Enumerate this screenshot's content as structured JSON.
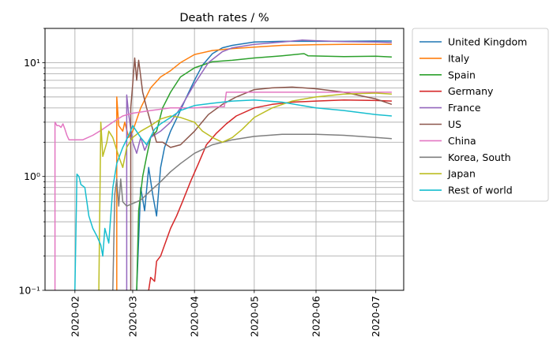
{
  "chart_data": {
    "type": "line",
    "title": "Death rates / %",
    "xlabel": "",
    "ylabel": "",
    "yscale": "log",
    "ylim": [
      0.1,
      20
    ],
    "xlim": [
      "2020-01-17",
      "2020-07-15"
    ],
    "grid": true,
    "legend_position": "outside-right",
    "x_ticks": [
      "2020-02",
      "2020-03",
      "2020-04",
      "2020-05",
      "2020-06",
      "2020-07"
    ],
    "x_tick_dates": [
      "2020-02-01",
      "2020-03-01",
      "2020-04-01",
      "2020-05-01",
      "2020-06-01",
      "2020-07-01"
    ],
    "y_ticks": [
      {
        "value": 0.1,
        "label": "10⁻¹"
      },
      {
        "value": 1,
        "label": "10⁰"
      },
      {
        "value": 10,
        "label": "10¹"
      }
    ],
    "series": [
      {
        "name": "United Kingdom",
        "color": "#1f77b4",
        "points": [
          [
            "2020-03-03",
            0.1
          ],
          [
            "2020-03-05",
            0.8
          ],
          [
            "2020-03-07",
            0.5
          ],
          [
            "2020-03-09",
            1.2
          ],
          [
            "2020-03-11",
            0.7
          ],
          [
            "2020-03-13",
            0.45
          ],
          [
            "2020-03-15",
            1.2
          ],
          [
            "2020-03-17",
            1.8
          ],
          [
            "2020-03-20",
            2.5
          ],
          [
            "2020-03-24",
            3.5
          ],
          [
            "2020-03-28",
            5.0
          ],
          [
            "2020-04-01",
            7.0
          ],
          [
            "2020-04-05",
            9.5
          ],
          [
            "2020-04-10",
            12.0
          ],
          [
            "2020-04-15",
            13.5
          ],
          [
            "2020-04-20",
            14.2
          ],
          [
            "2020-05-01",
            15.2
          ],
          [
            "2020-05-15",
            15.4
          ],
          [
            "2020-06-01",
            15.4
          ],
          [
            "2020-06-15",
            15.4
          ],
          [
            "2020-07-01",
            15.5
          ],
          [
            "2020-07-09",
            15.5
          ]
        ]
      },
      {
        "name": "Italy",
        "color": "#ff7f0e",
        "points": [
          [
            "2020-02-22",
            5.0
          ],
          [
            "2020-02-23",
            2.8
          ],
          [
            "2020-02-25",
            2.5
          ],
          [
            "2020-02-26",
            3.0
          ],
          [
            "2020-02-28",
            2.2
          ],
          [
            "2020-03-01",
            2.5
          ],
          [
            "2020-03-05",
            4.0
          ],
          [
            "2020-03-10",
            6.0
          ],
          [
            "2020-03-15",
            7.5
          ],
          [
            "2020-03-20",
            8.5
          ],
          [
            "2020-03-25",
            10.0
          ],
          [
            "2020-04-01",
            11.8
          ],
          [
            "2020-04-10",
            12.8
          ],
          [
            "2020-04-20",
            13.3
          ],
          [
            "2020-05-01",
            13.7
          ],
          [
            "2020-05-15",
            14.2
          ],
          [
            "2020-06-01",
            14.4
          ],
          [
            "2020-06-15",
            14.5
          ],
          [
            "2020-07-01",
            14.5
          ],
          [
            "2020-07-09",
            14.5
          ]
        ]
      },
      {
        "name": "Spain",
        "color": "#2ca02c",
        "points": [
          [
            "2020-03-03",
            0.1
          ],
          [
            "2020-03-04",
            0.5
          ],
          [
            "2020-03-06",
            1.0
          ],
          [
            "2020-03-08",
            1.5
          ],
          [
            "2020-03-10",
            2.2
          ],
          [
            "2020-03-13",
            2.5
          ],
          [
            "2020-03-16",
            4.0
          ],
          [
            "2020-03-20",
            5.5
          ],
          [
            "2020-03-25",
            7.5
          ],
          [
            "2020-04-01",
            9.0
          ],
          [
            "2020-04-10",
            10.2
          ],
          [
            "2020-04-20",
            10.5
          ],
          [
            "2020-05-01",
            11.0
          ],
          [
            "2020-05-15",
            11.5
          ],
          [
            "2020-05-26",
            12.0
          ],
          [
            "2020-05-28",
            11.5
          ],
          [
            "2020-06-15",
            11.3
          ],
          [
            "2020-07-01",
            11.4
          ],
          [
            "2020-07-09",
            11.2
          ]
        ]
      },
      {
        "name": "Germany",
        "color": "#d62728",
        "points": [
          [
            "2020-03-09",
            0.1
          ],
          [
            "2020-03-10",
            0.13
          ],
          [
            "2020-03-12",
            0.12
          ],
          [
            "2020-03-13",
            0.18
          ],
          [
            "2020-03-15",
            0.2
          ],
          [
            "2020-03-17",
            0.25
          ],
          [
            "2020-03-20",
            0.35
          ],
          [
            "2020-03-23",
            0.45
          ],
          [
            "2020-03-26",
            0.6
          ],
          [
            "2020-03-30",
            0.9
          ],
          [
            "2020-04-03",
            1.3
          ],
          [
            "2020-04-07",
            1.9
          ],
          [
            "2020-04-12",
            2.4
          ],
          [
            "2020-04-17",
            2.9
          ],
          [
            "2020-04-22",
            3.4
          ],
          [
            "2020-05-01",
            4.0
          ],
          [
            "2020-05-10",
            4.3
          ],
          [
            "2020-05-20",
            4.5
          ],
          [
            "2020-06-01",
            4.6
          ],
          [
            "2020-06-15",
            4.7
          ],
          [
            "2020-07-01",
            4.65
          ],
          [
            "2020-07-09",
            4.6
          ]
        ]
      },
      {
        "name": "France",
        "color": "#9467bd",
        "points": [
          [
            "2020-02-27",
            5.2
          ],
          [
            "2020-02-28",
            3.5
          ],
          [
            "2020-03-01",
            2.0
          ],
          [
            "2020-03-03",
            1.6
          ],
          [
            "2020-03-05",
            2.2
          ],
          [
            "2020-03-07",
            1.7
          ],
          [
            "2020-03-10",
            2.2
          ],
          [
            "2020-03-15",
            2.5
          ],
          [
            "2020-03-20",
            3.0
          ],
          [
            "2020-03-25",
            4.0
          ],
          [
            "2020-04-01",
            6.5
          ],
          [
            "2020-04-08",
            10.0
          ],
          [
            "2020-04-15",
            12.5
          ],
          [
            "2020-04-20",
            13.5
          ],
          [
            "2020-05-01",
            14.5
          ],
          [
            "2020-05-15",
            15.2
          ],
          [
            "2020-05-25",
            15.8
          ],
          [
            "2020-06-01",
            15.6
          ],
          [
            "2020-06-15",
            15.3
          ],
          [
            "2020-07-01",
            15.2
          ],
          [
            "2020-07-09",
            15.0
          ]
        ]
      },
      {
        "name": "US",
        "color": "#8c564b",
        "points": [
          [
            "2020-02-29",
            4.0
          ],
          [
            "2020-03-01",
            6.5
          ],
          [
            "2020-03-02",
            11.0
          ],
          [
            "2020-03-03",
            7.0
          ],
          [
            "2020-03-04",
            10.5
          ],
          [
            "2020-03-06",
            5.5
          ],
          [
            "2020-03-08",
            4.0
          ],
          [
            "2020-03-10",
            3.0
          ],
          [
            "2020-03-13",
            2.0
          ],
          [
            "2020-03-16",
            2.0
          ],
          [
            "2020-03-20",
            1.8
          ],
          [
            "2020-03-25",
            1.9
          ],
          [
            "2020-04-01",
            2.5
          ],
          [
            "2020-04-08",
            3.5
          ],
          [
            "2020-04-15",
            4.3
          ],
          [
            "2020-04-22",
            5.0
          ],
          [
            "2020-05-01",
            5.8
          ],
          [
            "2020-05-10",
            6.0
          ],
          [
            "2020-05-20",
            6.1
          ],
          [
            "2020-06-01",
            5.9
          ],
          [
            "2020-06-15",
            5.5
          ],
          [
            "2020-07-01",
            4.8
          ],
          [
            "2020-07-09",
            4.3
          ]
        ]
      },
      {
        "name": "China",
        "color": "#e377c2",
        "points": [
          [
            "2020-01-22",
            3.0
          ],
          [
            "2020-01-23",
            2.8
          ],
          [
            "2020-01-24",
            2.8
          ],
          [
            "2020-01-25",
            2.7
          ],
          [
            "2020-01-26",
            2.9
          ],
          [
            "2020-01-27",
            2.6
          ],
          [
            "2020-01-28",
            2.3
          ],
          [
            "2020-01-29",
            2.1
          ],
          [
            "2020-02-01",
            2.1
          ],
          [
            "2020-02-05",
            2.1
          ],
          [
            "2020-02-10",
            2.3
          ],
          [
            "2020-02-15",
            2.6
          ],
          [
            "2020-02-20",
            3.0
          ],
          [
            "2020-02-25",
            3.4
          ],
          [
            "2020-03-01",
            3.6
          ],
          [
            "2020-03-10",
            3.8
          ],
          [
            "2020-03-20",
            4.0
          ],
          [
            "2020-04-01",
            4.0
          ],
          [
            "2020-04-10",
            4.1
          ],
          [
            "2020-04-16",
            4.1
          ],
          [
            "2020-04-17",
            5.5
          ],
          [
            "2020-05-01",
            5.5
          ],
          [
            "2020-06-01",
            5.5
          ],
          [
            "2020-07-01",
            5.5
          ],
          [
            "2020-07-09",
            5.5
          ]
        ]
      },
      {
        "name": "Korea, South",
        "color": "#7f7f7f",
        "points": [
          [
            "2020-02-20",
            0.1
          ],
          [
            "2020-02-21",
            0.7
          ],
          [
            "2020-02-22",
            0.95
          ],
          [
            "2020-02-23",
            0.55
          ],
          [
            "2020-02-24",
            0.95
          ],
          [
            "2020-02-25",
            0.6
          ],
          [
            "2020-02-27",
            0.55
          ],
          [
            "2020-03-01",
            0.58
          ],
          [
            "2020-03-05",
            0.62
          ],
          [
            "2020-03-10",
            0.75
          ],
          [
            "2020-03-15",
            0.9
          ],
          [
            "2020-03-20",
            1.1
          ],
          [
            "2020-03-25",
            1.3
          ],
          [
            "2020-04-01",
            1.6
          ],
          [
            "2020-04-10",
            1.9
          ],
          [
            "2020-04-20",
            2.1
          ],
          [
            "2020-05-01",
            2.25
          ],
          [
            "2020-05-15",
            2.35
          ],
          [
            "2020-06-01",
            2.35
          ],
          [
            "2020-06-15",
            2.3
          ],
          [
            "2020-07-01",
            2.2
          ],
          [
            "2020-07-09",
            2.15
          ]
        ]
      },
      {
        "name": "Japan",
        "color": "#bcbd22",
        "points": [
          [
            "2020-02-13",
            0.1
          ],
          [
            "2020-02-14",
            3.0
          ],
          [
            "2020-02-15",
            1.5
          ],
          [
            "2020-02-17",
            2.0
          ],
          [
            "2020-02-18",
            2.5
          ],
          [
            "2020-02-20",
            2.2
          ],
          [
            "2020-02-23",
            1.5
          ],
          [
            "2020-02-25",
            1.2
          ],
          [
            "2020-02-27",
            1.8
          ],
          [
            "2020-03-01",
            2.2
          ],
          [
            "2020-03-05",
            2.5
          ],
          [
            "2020-03-10",
            2.8
          ],
          [
            "2020-03-15",
            3.2
          ],
          [
            "2020-03-20",
            3.4
          ],
          [
            "2020-03-25",
            3.3
          ],
          [
            "2020-04-01",
            3.0
          ],
          [
            "2020-04-05",
            2.5
          ],
          [
            "2020-04-10",
            2.2
          ],
          [
            "2020-04-15",
            2.0
          ],
          [
            "2020-04-20",
            2.2
          ],
          [
            "2020-04-25",
            2.6
          ],
          [
            "2020-05-01",
            3.3
          ],
          [
            "2020-05-10",
            4.0
          ],
          [
            "2020-05-20",
            4.6
          ],
          [
            "2020-06-01",
            5.0
          ],
          [
            "2020-06-15",
            5.3
          ],
          [
            "2020-07-01",
            5.4
          ],
          [
            "2020-07-09",
            5.3
          ]
        ]
      },
      {
        "name": "Rest of world",
        "color": "#17becf",
        "points": [
          [
            "2020-02-01",
            0.1
          ],
          [
            "2020-02-02",
            1.05
          ],
          [
            "2020-02-03",
            1.0
          ],
          [
            "2020-02-04",
            0.85
          ],
          [
            "2020-02-06",
            0.8
          ],
          [
            "2020-02-08",
            0.45
          ],
          [
            "2020-02-10",
            0.35
          ],
          [
            "2020-02-12",
            0.3
          ],
          [
            "2020-02-14",
            0.25
          ],
          [
            "2020-02-15",
            0.2
          ],
          [
            "2020-02-16",
            0.35
          ],
          [
            "2020-02-18",
            0.26
          ],
          [
            "2020-02-20",
            0.8
          ],
          [
            "2020-02-22",
            1.3
          ],
          [
            "2020-02-25",
            1.8
          ],
          [
            "2020-02-28",
            2.3
          ],
          [
            "2020-03-01",
            2.8
          ],
          [
            "2020-03-05",
            2.2
          ],
          [
            "2020-03-08",
            1.9
          ],
          [
            "2020-03-12",
            2.6
          ],
          [
            "2020-03-15",
            2.9
          ],
          [
            "2020-03-20",
            3.3
          ],
          [
            "2020-03-25",
            3.8
          ],
          [
            "2020-04-01",
            4.2
          ],
          [
            "2020-04-10",
            4.4
          ],
          [
            "2020-04-20",
            4.6
          ],
          [
            "2020-05-01",
            4.7
          ],
          [
            "2020-05-15",
            4.5
          ],
          [
            "2020-06-01",
            4.0
          ],
          [
            "2020-06-15",
            3.8
          ],
          [
            "2020-07-01",
            3.5
          ],
          [
            "2020-07-09",
            3.4
          ]
        ]
      }
    ]
  }
}
